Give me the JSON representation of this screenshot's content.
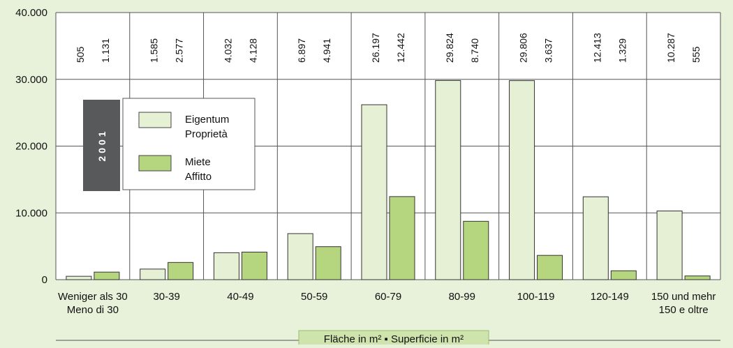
{
  "chart_data": {
    "type": "bar",
    "year_badge": "2001",
    "categories": [
      [
        "Weniger als 30",
        "Meno di 30"
      ],
      [
        "30-39"
      ],
      [
        "40-49"
      ],
      [
        "50-59"
      ],
      [
        "60-79"
      ],
      [
        "80-99"
      ],
      [
        "100-119"
      ],
      [
        "120-149"
      ],
      [
        "150 und mehr",
        "150 e oltre"
      ]
    ],
    "series": [
      {
        "name": [
          "Eigentum",
          "Proprietà"
        ],
        "color": "#e6f0d4",
        "values": [
          505,
          1585,
          4032,
          6897,
          26197,
          29824,
          29806,
          12413,
          10287
        ],
        "labels": [
          "505",
          "1.585",
          "4.032",
          "6.897",
          "26.197",
          "29.824",
          "29.806",
          "12.413",
          "10.287"
        ]
      },
      {
        "name": [
          "Miete",
          "Affitto"
        ],
        "color": "#b5d57f",
        "values": [
          1131,
          2577,
          4128,
          4941,
          12442,
          8740,
          3637,
          1329,
          555
        ],
        "labels": [
          "1.131",
          "2.577",
          "4.128",
          "4.941",
          "12.442",
          "8.740",
          "3.637",
          "1.329",
          "555"
        ]
      }
    ],
    "yticks": [
      {
        "value": 0,
        "label": "0"
      },
      {
        "value": 10000,
        "label": "10.000"
      },
      {
        "value": 20000,
        "label": "20.000"
      },
      {
        "value": 30000,
        "label": "30.000"
      },
      {
        "value": 40000,
        "label": "40.000"
      }
    ],
    "ylim": [
      0,
      40000
    ],
    "xlabel": "Fläche in m² ▪ Superficie in m²",
    "legend_position": "left",
    "grid": true
  }
}
